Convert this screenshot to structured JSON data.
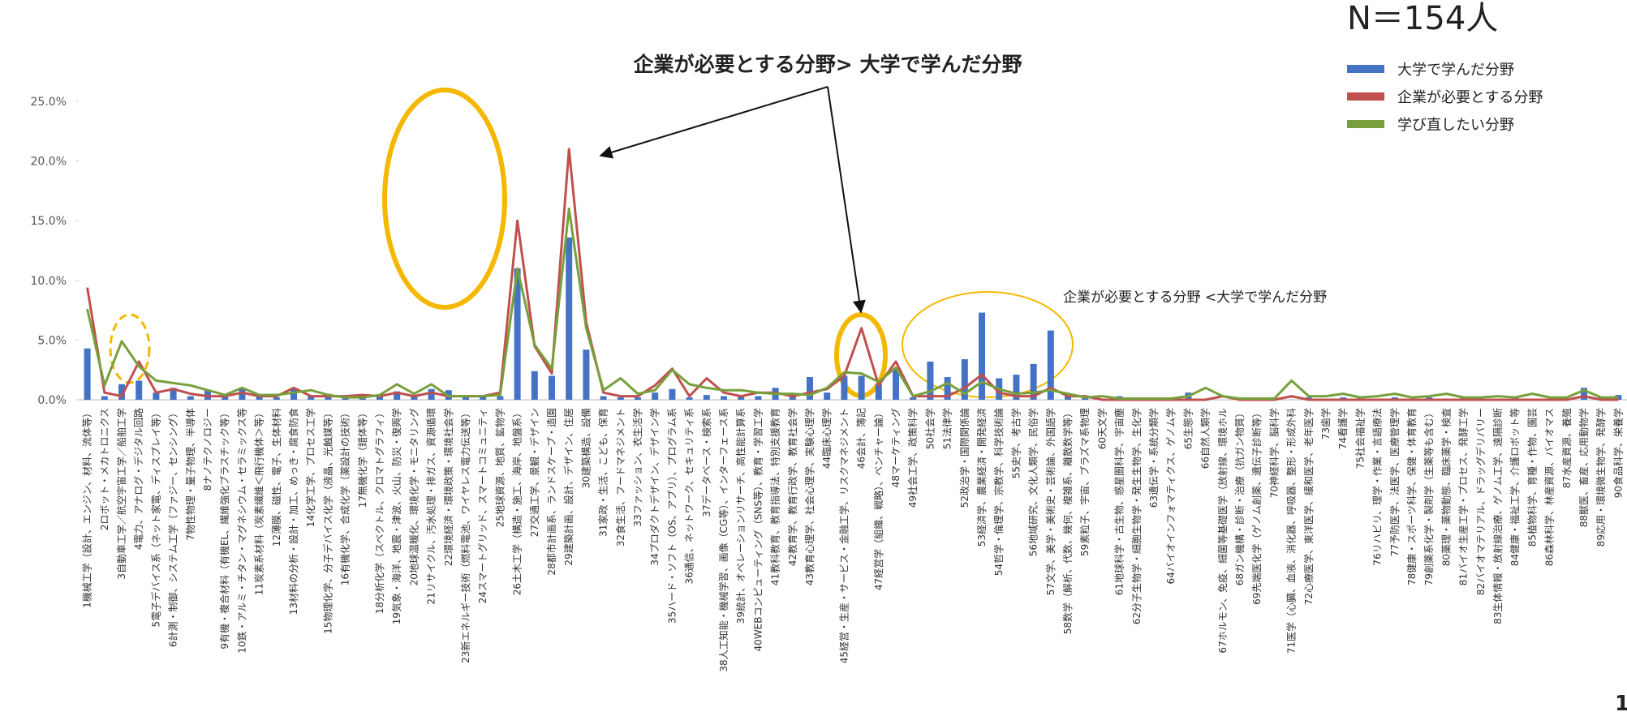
{
  "chart_data": {
    "type": "bar",
    "title": "企業が必要とする分野> 大学で学んだ分野",
    "annotations": [
      "企業が必要とする分野 <大学で学んだ分野",
      "N＝154人",
      "1"
    ],
    "categories": [
      "1機械工学（設計、エンジン、材料、流体等）",
      "2ロボット・メカトロニクス",
      "3自動車工学／航空宇宙工学／船舶工学",
      "4電力、アナログ・デジタル回路",
      "5電子デバイス系（ネット家電、ディスプレイ等）",
      "6計測・制御、システム工学（ファジー、センシング）",
      "7物性物理・量子物理、半導体",
      "8ナノテクノロジー",
      "9有機・複合材料（有機EL、繊維強化プラスチック等）",
      "10鉄・アルミ・チタン・マグネシウム・セラミックス等",
      "11炭素系材料（炭素繊維＜飛行機体＞等）",
      "12薄膜、磁性、電子、生体材料",
      "13材料の分析・設計・加工、めっき・腐食防食",
      "14化学工学、プロセス工学",
      "15物理化学、分子デバイス化学（液晶、光触媒等）",
      "16有機化学、合成化学（薬設計の技術）",
      "17無機化学（錯体等）",
      "18分析化学（スペクトル、クロマトグラフィ）",
      "19気象・海洋、地震・津波、火山、防災・復興学",
      "20地球温暖化、環境化学・モニタリング",
      "21リサイクル、汚水処理・排ガス、資源循環",
      "22環境経済・環境政策・環境社会学",
      "23新エネルギー技術（燃料電池、ワイヤレス電力伝送等）",
      "24スマートグリッド、スマートコミュニティ",
      "25地球資源、地質、鉱物学",
      "26土木工学（構造・施工、海岸、地盤系）",
      "27交通工学、景観・デザイン",
      "28都市計画系、ランドスケープ・造園",
      "29建築計画、設計、デザイン、住居",
      "30建築構造、設備",
      "31家政・生活、こども、保育",
      "32食生活、フードマネジメント",
      "33ファッション、衣生活学",
      "34プロダクトデザイン、デザイン学",
      "35ハード・ソフト（OS、アプリ）、プログラム系",
      "36通信、ネットワーク、セキュリティ系",
      "37データベース・検索系",
      "38人工知能・機械学習、画像（CG等）、インターフェース系",
      "39統計、オペレーションリサーチ、高性能計算系",
      "40WEBコンピューティング（SNS等）、教育・学習工学",
      "41教科教育、教育指導法、特別支援教育",
      "42教育学、教育行政学、教育社会学",
      "43教育心理学、社会心理学、実験心理学",
      "44臨床心理学",
      "45経営・生産・サービス・金融工学、リスクマネジメント",
      "46会計、簿記",
      "47経営学（組織、戦略）、ベンチャー論）",
      "48マーケティング",
      "49社会工学、政策科学",
      "50社会学",
      "51法律学",
      "52政治学・国際関係論",
      "53経済学、農業経済・開発経済",
      "54哲学・倫理学、宗教学、科学技術論",
      "55史学、考古学",
      "56地域研究、文化人類学、民俗学",
      "57文学、美学・美術史・芸術論、外国語学",
      "58数学（解析、代数、幾何、複雑系、離散数学等）",
      "59素粒子、宇宙、プラズマ系物理",
      "60天文学",
      "61地球科学・古生物、惑星圏科学、宇宙塵",
      "62分子生物学・細胞生物学・発生生物学、生化学",
      "63遺伝学・系統分類学",
      "64バイオインフォマティクス、ゲノム学",
      "65生態学",
      "66自然人類学",
      "67ホルモン、免疫、細菌等基礎医学（放射線、環境ホル",
      "68ガン機構・診断・治療（抗ガン物質）",
      "69先端医化学（ゲノム創薬、遺伝子診断等）",
      "70神経科学、脳科学",
      "71医学（心臓、血液、消化器、呼吸器、整形・形成外科",
      "72心療医学、東洋医学、緩和医学、老年医学",
      "73歯学",
      "74看護学",
      "75社会福祉学",
      "76リハビリ、理学・作業・言語療法",
      "77予防医学、法医学、医療管理学",
      "78健康・スポーツ科学、保健・体育教育",
      "79創薬系化学・製剤学（生薬等も含む）",
      "80薬理・薬物動態、臨床薬学・検査",
      "81バイオ生産工学・プロセス、発酵工学",
      "82バイオマテリアル、ドラッグデリバリー",
      "83生体情報・放射線治療、ゲノム工学、遠隔診断",
      "84健康・福祉工学、介護ロボット等",
      "85植物科学、育種・作物、園芸",
      "86森林科学、林産資源、バイオマス",
      "87水産資源、養殖",
      "88獣医、畜産、応用動物学",
      "89応用・環境微生物学、発酵学",
      "90食品科学、栄養学"
    ],
    "series": [
      {
        "name": "大学で学んだ分野",
        "type": "bar",
        "color": "#4472c4",
        "values": [
          4.3,
          0.3,
          1.3,
          1.6,
          0.6,
          1.0,
          0.3,
          0.8,
          0.3,
          0.9,
          0.3,
          0.2,
          1.0,
          0.3,
          0.5,
          0.3,
          0.3,
          0.3,
          0.7,
          0.3,
          0.9,
          0.8,
          0.3,
          0.3,
          0.3,
          11.0,
          2.4,
          2.0,
          13.6,
          4.2,
          0.3,
          0.2,
          0.2,
          0.6,
          0.9,
          0.2,
          0.4,
          0.3,
          0.3,
          0.3,
          1.0,
          0.3,
          1.9,
          0.6,
          2.0,
          2.0,
          1.3,
          2.6,
          0.2,
          3.2,
          1.9,
          3.4,
          7.3,
          1.8,
          2.1,
          3.0,
          5.8,
          0.3,
          0.2,
          0.0,
          0.3,
          0.0,
          0.2,
          0.0,
          0.6,
          0.0,
          0.0,
          0.0,
          0.0,
          0.0,
          0.0,
          0.2,
          0.0,
          0.2,
          0.3,
          0.0,
          0.2,
          0.0,
          0.2,
          0.0,
          0.2,
          0.0,
          0.0,
          0.2,
          0.0,
          0.0,
          0.0,
          1.0,
          0.2,
          0.4
        ]
      },
      {
        "name": "企業が必要とする分野",
        "type": "line",
        "color": "#c0504d",
        "values": [
          9.4,
          0.6,
          0.3,
          3.2,
          0.6,
          0.9,
          0.5,
          0.3,
          0.3,
          0.6,
          0.3,
          0.3,
          1.0,
          0.3,
          0.3,
          0.3,
          0.4,
          0.3,
          0.6,
          0.3,
          0.6,
          0.3,
          0.3,
          0.3,
          0.6,
          15.0,
          4.5,
          2.2,
          21.0,
          6.5,
          0.6,
          0.3,
          0.3,
          1.2,
          2.6,
          0.3,
          1.8,
          0.6,
          0.3,
          0.6,
          0.6,
          0.3,
          0.6,
          0.9,
          2.0,
          6.0,
          1.2,
          3.2,
          0.3,
          0.3,
          0.3,
          1.0,
          2.1,
          0.6,
          0.3,
          0.3,
          1.0,
          0.3,
          0.3,
          0.0,
          0.0,
          0.0,
          0.0,
          0.0,
          0.0,
          0.0,
          0.3,
          0.0,
          0.0,
          0.0,
          0.3,
          0.0,
          0.0,
          0.0,
          0.0,
          0.0,
          0.0,
          0.0,
          0.0,
          0.0,
          0.0,
          0.0,
          0.0,
          0.0,
          0.0,
          0.0,
          0.0,
          0.3,
          0.0,
          0.0
        ]
      },
      {
        "name": "学び直したい分野",
        "type": "line",
        "color": "#77a03c",
        "values": [
          7.6,
          1.2,
          4.9,
          2.8,
          1.6,
          1.4,
          1.2,
          0.8,
          0.4,
          1.0,
          0.4,
          0.4,
          0.6,
          0.8,
          0.4,
          0.2,
          0.2,
          0.4,
          1.3,
          0.5,
          1.3,
          0.3,
          0.3,
          0.3,
          0.4,
          11.0,
          4.6,
          2.6,
          16.0,
          6.0,
          0.8,
          1.8,
          0.5,
          0.8,
          2.5,
          1.3,
          1.0,
          0.8,
          0.8,
          0.6,
          0.5,
          0.5,
          0.4,
          1.0,
          2.3,
          2.2,
          1.5,
          2.7,
          0.3,
          0.7,
          1.4,
          0.5,
          1.5,
          0.9,
          0.5,
          0.6,
          0.8,
          0.5,
          0.2,
          0.3,
          0.1,
          0.1,
          0.1,
          0.1,
          0.3,
          1.0,
          0.3,
          0.1,
          0.1,
          0.1,
          1.6,
          0.3,
          0.3,
          0.5,
          0.2,
          0.3,
          0.5,
          0.2,
          0.3,
          0.5,
          0.2,
          0.2,
          0.3,
          0.2,
          0.5,
          0.2,
          0.2,
          0.8,
          0.2,
          0.2
        ]
      }
    ],
    "ylim": [
      0,
      25
    ],
    "yticks": [
      {
        "value": 0,
        "label": "0.0%"
      },
      {
        "value": 5,
        "label": "5.0%"
      },
      {
        "value": 10,
        "label": "10.0%"
      },
      {
        "value": 15,
        "label": "15.0%"
      },
      {
        "value": 20,
        "label": "20.0%"
      },
      {
        "value": 25,
        "label": "25.0%"
      }
    ],
    "grid": false,
    "legend": "top-right"
  }
}
